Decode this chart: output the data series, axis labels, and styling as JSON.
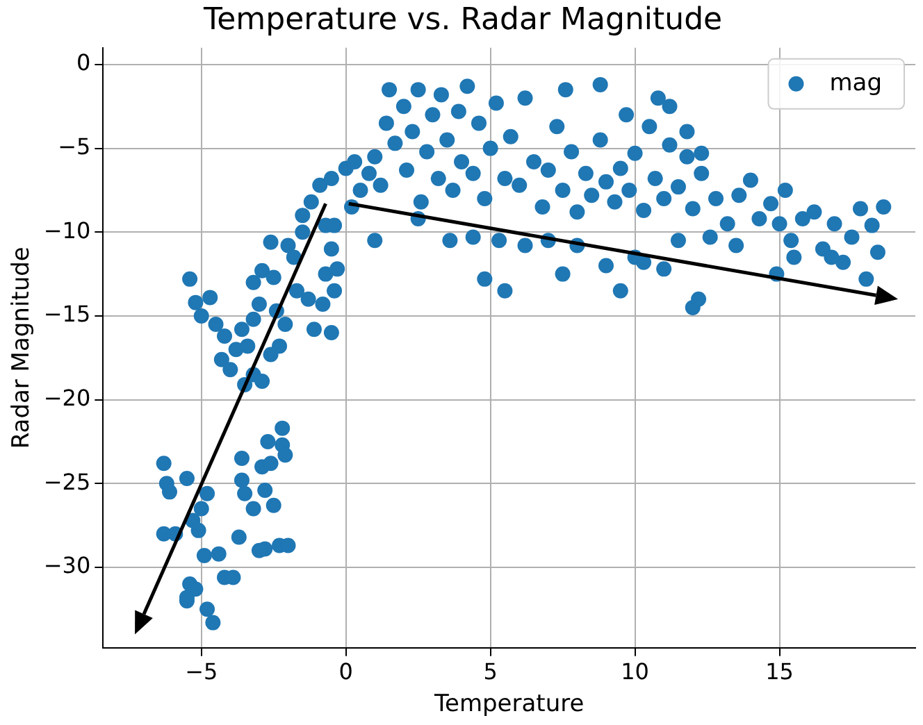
{
  "chart_data": {
    "type": "scatter",
    "title": "Temperature vs. Radar Magnitude",
    "xlabel": "Temperature",
    "ylabel": "Radar Magnitude",
    "xlim": [
      -8.4,
      19.7
    ],
    "ylim": [
      -34.8,
      1
    ],
    "xticks": [
      -5,
      0,
      5,
      10,
      15
    ],
    "yticks": [
      -30,
      -25,
      -20,
      -15,
      -10,
      -5,
      0
    ],
    "grid": true,
    "legend": "top right",
    "marker": "circle",
    "series": [
      {
        "name": "mag",
        "color": "#1f77b4",
        "x": [
          -6.3,
          -6.2,
          -6.1,
          -6.3,
          -5.9,
          -5.5,
          -5.3,
          -5.0,
          -4.8,
          -5.1,
          -5.4,
          -5.5,
          -5.2,
          -5.5,
          -4.8,
          -4.6,
          -4.9,
          -4.4,
          -4.2,
          -3.9,
          -3.7,
          -3.6,
          -3.6,
          -3.5,
          -2.9,
          -2.8,
          -2.7,
          -2.6,
          -2.2,
          -2.2,
          -2.1,
          -2.8,
          -3.0,
          -2.3,
          -2.0,
          -3.2,
          -2.5,
          -5.4,
          -5.2,
          -5.0,
          -4.7,
          -4.5,
          -4.2,
          -4.3,
          -4.0,
          -3.8,
          -3.6,
          -3.4,
          -3.2,
          -3.0,
          -3.5,
          -3.2,
          -2.9,
          -2.6,
          -3.2,
          -2.9,
          -2.5,
          -2.4,
          -2.1,
          -2.3,
          -2.0,
          -1.8,
          -1.5,
          -2.6,
          -1.3,
          -1.1,
          -1.7,
          -0.7,
          -0.5,
          -0.4,
          -0.3,
          -0.8,
          -0.5,
          -1.5,
          -1.2,
          -0.9,
          -0.7,
          -0.4,
          -0.5,
          0,
          0.3,
          0.5,
          0.2,
          0.8,
          1.0,
          1.2,
          1.4,
          1.5,
          1.7,
          2.0,
          2.1,
          2.3,
          2.5,
          2.6,
          2.8,
          3.0,
          3.2,
          3.3,
          3.5,
          3.7,
          3.9,
          4.0,
          4.2,
          4.4,
          4.6,
          4.8,
          5.0,
          5.2,
          5.5,
          5.7,
          6.0,
          6.2,
          6.5,
          6.8,
          7.0,
          7.3,
          7.5,
          7.8,
          8.0,
          8.3,
          8.5,
          8.8,
          9.0,
          9.3,
          9.5,
          9.8,
          10.0,
          10.3,
          10.5,
          10.7,
          11.0,
          11.2,
          11.5,
          11.8,
          12.0,
          12.3,
          3.6,
          4.4,
          5.3,
          6.2,
          7.0,
          8.0,
          1.0,
          2.5,
          4.8,
          5.5,
          7.5,
          9.5,
          10.0,
          11.0,
          12.0,
          12.2,
          9.0,
          10.3,
          7.6,
          8.8,
          9.7,
          10.8,
          11.2,
          11.8,
          12.3,
          12.8,
          13.2,
          13.6,
          14.0,
          14.3,
          14.7,
          15.0,
          15.4,
          15.8,
          16.2,
          16.5,
          16.9,
          17.2,
          17.5,
          17.8,
          18.2,
          18.4,
          18.0,
          15.2,
          16.8,
          14.9,
          13.5,
          15.5,
          18.6,
          12.6,
          11.5
        ],
        "values": [
          -23.8,
          -25,
          -25.5,
          -28,
          -28,
          -24.7,
          -27.2,
          -26.5,
          -25.6,
          -27.8,
          -31,
          -32,
          -31.3,
          -31.8,
          -32.5,
          -33.3,
          -29.3,
          -29.2,
          -30.6,
          -30.6,
          -28.2,
          -23.5,
          -24.8,
          -25.6,
          -24,
          -25.4,
          -22.5,
          -23.8,
          -22.7,
          -21.7,
          -23.3,
          -28.9,
          -29,
          -28.7,
          -28.7,
          -26.5,
          -26.3,
          -12.8,
          -14.2,
          -15,
          -13.9,
          -15.5,
          -16.2,
          -17.6,
          -18.2,
          -17,
          -15.8,
          -16.8,
          -15.2,
          -14.3,
          -19.1,
          -18.5,
          -18.9,
          -17.3,
          -13,
          -12.3,
          -12.7,
          -14.7,
          -15.5,
          -16.8,
          -10.8,
          -11.5,
          -10,
          -10.6,
          -14,
          -15.8,
          -13.5,
          -12.5,
          -11,
          -13.5,
          -12.2,
          -14.3,
          -16,
          -9,
          -8.2,
          -7.2,
          -9.6,
          -9.6,
          -6.8,
          -6.2,
          -5.8,
          -7.5,
          -8.5,
          -6.5,
          -5.5,
          -7.2,
          -3.5,
          -1.5,
          -4.7,
          -2.5,
          -6.3,
          -4,
          -1.5,
          -8.2,
          -5.2,
          -3,
          -6.8,
          -1.8,
          -4.5,
          -7.5,
          -2.8,
          -5.8,
          -1.3,
          -6.5,
          -3.5,
          -8,
          -5,
          -2.3,
          -6.8,
          -4.3,
          -7.2,
          -2,
          -5.8,
          -8.5,
          -6.3,
          -3.7,
          -7.5,
          -5.2,
          -8.8,
          -6.5,
          -7.8,
          -4.5,
          -7,
          -8.2,
          -6.2,
          -7.5,
          -5.3,
          -8.7,
          -3.7,
          -6.8,
          -8,
          -4.8,
          -7.3,
          -5.5,
          -8.6,
          -6.5,
          -10.5,
          -10.3,
          -10.5,
          -10.8,
          -10.5,
          -10.8,
          -10.5,
          -9.2,
          -12.8,
          -13.5,
          -12.5,
          -13.5,
          -11.5,
          -12.2,
          -14.5,
          -14,
          -12,
          -11.8,
          -1.5,
          -1.2,
          -3,
          -2,
          -2.5,
          -4,
          -5.3,
          -8,
          -9.5,
          -7.8,
          -6.9,
          -9.2,
          -8.3,
          -9.5,
          -10.5,
          -9.2,
          -8.8,
          -11,
          -9.5,
          -11.8,
          -10.3,
          -8.6,
          -9.6,
          -11.2,
          -12.8,
          -7.5,
          -11.5,
          -12.5,
          -10.8,
          -11.5,
          -8.5,
          -10.3,
          -10.5
        ]
      }
    ]
  }
}
